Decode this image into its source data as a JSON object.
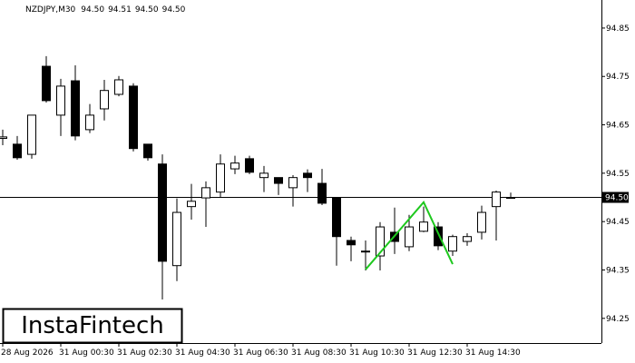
{
  "chart_data": {
    "type": "candlestick",
    "symbol": "NZDJPY,M30",
    "header_values": [
      "94.50",
      "94.51",
      "94.50",
      "94.50"
    ],
    "brand": "InstaFintech",
    "categories": [
      "28 Aug 2026",
      null,
      null,
      null,
      "31 Aug 00:30",
      null,
      null,
      null,
      "31 Aug 02:30",
      null,
      null,
      null,
      "31 Aug 04:30",
      null,
      null,
      null,
      "31 Aug 06:30",
      null,
      null,
      null,
      "31 Aug 08:30",
      null,
      null,
      null,
      "31 Aug 10:30",
      null,
      null,
      null,
      "31 Aug 12:30",
      null,
      null,
      null,
      "31 Aug 14:30",
      null,
      null,
      null
    ],
    "open": [
      94.622,
      94.61,
      94.589,
      94.771,
      94.67,
      94.741,
      94.64,
      94.683,
      94.713,
      94.73,
      94.61,
      94.569,
      94.359,
      94.481,
      94.499,
      94.511,
      94.559,
      94.58,
      94.541,
      94.541,
      94.52,
      94.55,
      94.529,
      94.499,
      94.411,
      94.389,
      94.379,
      94.428,
      94.398,
      94.43,
      94.439,
      94.389,
      94.409,
      94.428,
      94.481,
      94.5
    ],
    "high": [
      94.64,
      94.627,
      94.67,
      94.792,
      94.745,
      94.773,
      94.693,
      94.743,
      94.751,
      94.736,
      94.61,
      94.589,
      94.498,
      94.528,
      94.533,
      94.589,
      94.586,
      94.586,
      94.565,
      94.541,
      94.546,
      94.558,
      94.559,
      94.499,
      94.419,
      94.411,
      94.449,
      94.479,
      94.464,
      94.481,
      94.449,
      94.423,
      94.426,
      94.483,
      94.514,
      94.51
    ],
    "low": [
      94.608,
      94.578,
      94.58,
      94.696,
      94.627,
      94.618,
      94.633,
      94.659,
      94.709,
      94.595,
      94.576,
      94.289,
      94.327,
      94.454,
      94.439,
      94.499,
      94.548,
      94.548,
      94.511,
      94.505,
      94.481,
      94.511,
      94.484,
      94.359,
      94.368,
      94.349,
      94.349,
      94.383,
      94.389,
      94.428,
      94.391,
      94.379,
      94.4,
      94.413,
      94.411,
      94.5
    ],
    "close": [
      94.625,
      94.582,
      94.67,
      94.7,
      94.73,
      94.627,
      94.67,
      94.721,
      94.743,
      94.601,
      94.582,
      94.368,
      94.469,
      94.492,
      94.52,
      94.569,
      94.571,
      94.552,
      94.55,
      94.529,
      94.541,
      94.541,
      94.488,
      94.419,
      94.402,
      94.389,
      94.439,
      94.409,
      94.439,
      94.449,
      94.4,
      94.419,
      94.419,
      94.469,
      94.511,
      94.5
    ],
    "up_color": "#ffffff",
    "down_color": "#000000",
    "edge_color": "#000000",
    "last_price": {
      "value": 94.5,
      "label": "94.50"
    },
    "pattern": {
      "color": "#1ec81e",
      "x": [
        25,
        29,
        31
      ],
      "values": [
        94.351,
        94.49,
        94.362
      ]
    },
    "ylim": [
      94.199,
      94.908
    ],
    "yticks": [
      94.25,
      94.35,
      94.45,
      94.55,
      94.65,
      94.75,
      94.85
    ]
  }
}
